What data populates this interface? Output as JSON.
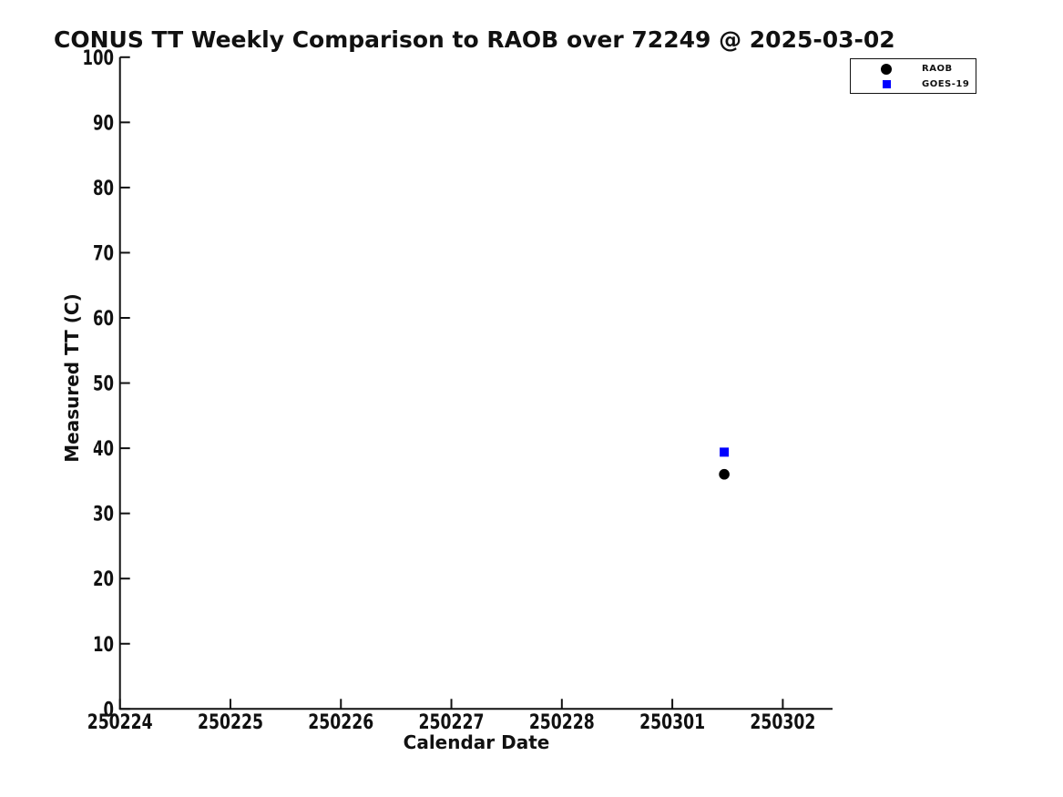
{
  "figure": {
    "background": "#ffffff",
    "axis_color": "#111111"
  },
  "chart_data": {
    "type": "scatter",
    "title": "CONUS TT Weekly Comparison to RAOB over 72249 @ 2025-03-02",
    "xlabel": "Calendar Date",
    "ylabel": "Measured TT (C)",
    "x_ticks": [
      "250224",
      "250225",
      "250226",
      "250227",
      "250228",
      "250301",
      "250302"
    ],
    "y_ticks": [
      "0",
      "10",
      "20",
      "30",
      "40",
      "50",
      "60",
      "70",
      "80",
      "90",
      "100"
    ],
    "ylim": [
      0,
      100
    ],
    "xlim_day_offsets": [
      0,
      6.45
    ],
    "grid": false,
    "legend": {
      "position": "top-right",
      "entries": [
        {
          "label": "RAOB",
          "marker": "circle",
          "color": "#000000"
        },
        {
          "label": "GOES-19",
          "marker": "square",
          "color": "#0000ff"
        }
      ]
    },
    "series": [
      {
        "name": "RAOB",
        "marker": "circle",
        "color": "#000000",
        "points": [
          {
            "x": 250301.5,
            "x_day_offset": 5.47,
            "y": 36.0
          }
        ]
      },
      {
        "name": "GOES-19",
        "marker": "square",
        "color": "#0000ff",
        "points": [
          {
            "x": 250301.5,
            "x_day_offset": 5.47,
            "y": 39.4
          }
        ]
      }
    ]
  }
}
